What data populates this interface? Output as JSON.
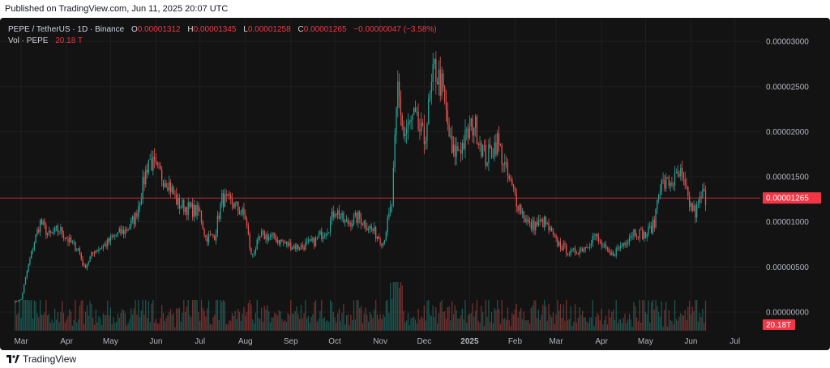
{
  "header": {
    "published": "Published on TradingView.com, Jun 11, 2025 20:07 UTC"
  },
  "legend": {
    "symbol": "PEPE / TetherUS · 1D · Binance",
    "o_label": "O",
    "o": "0.00001312",
    "h_label": "H",
    "h": "0.00001345",
    "l_label": "L",
    "l": "0.00001258",
    "c_label": "C",
    "c": "0.00001265",
    "change": "−0.00000047 (−3.58%)",
    "vol_label": "Vol · PEPE",
    "vol": "20.18 T"
  },
  "footer": {
    "brand": "TradingView"
  },
  "colors": {
    "up": "#26a69a",
    "down": "#ef5350",
    "background": "#131313",
    "price_line": "#f23645",
    "axis_text": "#b2b5be"
  },
  "chart_data": {
    "type": "candlestick",
    "title": "",
    "y_ticks": [
      "0.00003000",
      "0.00002500",
      "0.00002000",
      "0.00001500",
      "0.00001000",
      "0.00000500",
      "0.00000000"
    ],
    "ylim": [
      0,
      3.1e-05
    ],
    "x_ticks": [
      "Mar",
      "Apr",
      "May",
      "Jun",
      "Jul",
      "Aug",
      "Sep",
      "Oct",
      "Nov",
      "Dec",
      "2025",
      "Feb",
      "Mar",
      "Apr",
      "May",
      "Jun",
      "Jul"
    ],
    "last_price": 1.265e-05,
    "last_price_label": "0.00001265",
    "volume_label": "20.18T",
    "close_series": [
      {
        "date": "2024-02-25",
        "close": 1.1e-06
      },
      {
        "date": "2024-03-01",
        "close": 1.4e-06
      },
      {
        "date": "2024-03-05",
        "close": 4.5e-06
      },
      {
        "date": "2024-03-10",
        "close": 7.8e-06
      },
      {
        "date": "2024-03-14",
        "close": 1e-05
      },
      {
        "date": "2024-03-20",
        "close": 8.5e-06
      },
      {
        "date": "2024-03-27",
        "close": 9.2e-06
      },
      {
        "date": "2024-04-03",
        "close": 7.8e-06
      },
      {
        "date": "2024-04-09",
        "close": 7e-06
      },
      {
        "date": "2024-04-13",
        "close": 4.9e-06
      },
      {
        "date": "2024-04-20",
        "close": 6.8e-06
      },
      {
        "date": "2024-04-27",
        "close": 7.4e-06
      },
      {
        "date": "2024-05-04",
        "close": 8.5e-06
      },
      {
        "date": "2024-05-11",
        "close": 9e-06
      },
      {
        "date": "2024-05-18",
        "close": 1.05e-05
      },
      {
        "date": "2024-05-23",
        "close": 1.4e-05
      },
      {
        "date": "2024-05-27",
        "close": 1.7e-05
      },
      {
        "date": "2024-06-02",
        "close": 1.55e-05
      },
      {
        "date": "2024-06-09",
        "close": 1.45e-05
      },
      {
        "date": "2024-06-16",
        "close": 1.2e-05
      },
      {
        "date": "2024-06-23",
        "close": 1.15e-05
      },
      {
        "date": "2024-07-01",
        "close": 1.1e-05
      },
      {
        "date": "2024-07-05",
        "close": 8.2e-06
      },
      {
        "date": "2024-07-11",
        "close": 8.5e-06
      },
      {
        "date": "2024-07-16",
        "close": 1.25e-05
      },
      {
        "date": "2024-07-24",
        "close": 1.2e-05
      },
      {
        "date": "2024-08-01",
        "close": 1.05e-05
      },
      {
        "date": "2024-08-05",
        "close": 6.2e-06
      },
      {
        "date": "2024-08-12",
        "close": 8.5e-06
      },
      {
        "date": "2024-08-21",
        "close": 8.2e-06
      },
      {
        "date": "2024-08-29",
        "close": 7.5e-06
      },
      {
        "date": "2024-09-07",
        "close": 7.2e-06
      },
      {
        "date": "2024-09-17",
        "close": 7.8e-06
      },
      {
        "date": "2024-09-27",
        "close": 9.5e-06
      },
      {
        "date": "2024-10-01",
        "close": 1.15e-05
      },
      {
        "date": "2024-10-08",
        "close": 9.8e-06
      },
      {
        "date": "2024-10-17",
        "close": 1.05e-05
      },
      {
        "date": "2024-10-24",
        "close": 9.5e-06
      },
      {
        "date": "2024-11-03",
        "close": 7.8e-06
      },
      {
        "date": "2024-11-09",
        "close": 1.2e-05
      },
      {
        "date": "2024-11-13",
        "close": 2.5e-05
      },
      {
        "date": "2024-11-17",
        "close": 1.95e-05
      },
      {
        "date": "2024-11-24",
        "close": 2.15e-05
      },
      {
        "date": "2024-12-01",
        "close": 1.9e-05
      },
      {
        "date": "2024-12-08",
        "close": 2.7e-05
      },
      {
        "date": "2024-12-13",
        "close": 2.5e-05
      },
      {
        "date": "2024-12-20",
        "close": 1.75e-05
      },
      {
        "date": "2024-12-27",
        "close": 1.85e-05
      },
      {
        "date": "2025-01-04",
        "close": 2.1e-05
      },
      {
        "date": "2025-01-12",
        "close": 1.7e-05
      },
      {
        "date": "2025-01-20",
        "close": 1.9e-05
      },
      {
        "date": "2025-01-27",
        "close": 1.5e-05
      },
      {
        "date": "2025-02-03",
        "close": 1.2e-05
      },
      {
        "date": "2025-02-11",
        "close": 9.5e-06
      },
      {
        "date": "2025-02-21",
        "close": 1e-05
      },
      {
        "date": "2025-03-01",
        "close": 7.8e-06
      },
      {
        "date": "2025-03-11",
        "close": 6.5e-06
      },
      {
        "date": "2025-03-21",
        "close": 7.2e-06
      },
      {
        "date": "2025-03-27",
        "close": 8.5e-06
      },
      {
        "date": "2025-04-07",
        "close": 6.2e-06
      },
      {
        "date": "2025-04-14",
        "close": 7.3e-06
      },
      {
        "date": "2025-04-23",
        "close": 9e-06
      },
      {
        "date": "2025-05-01",
        "close": 8.5e-06
      },
      {
        "date": "2025-05-07",
        "close": 9.8e-06
      },
      {
        "date": "2025-05-10",
        "close": 1.4e-05
      },
      {
        "date": "2025-05-20",
        "close": 1.45e-05
      },
      {
        "date": "2025-05-25",
        "close": 1.52e-05
      },
      {
        "date": "2025-05-31",
        "close": 1.2e-05
      },
      {
        "date": "2025-06-04",
        "close": 1.1e-05
      },
      {
        "date": "2025-06-09",
        "close": 1.31e-05
      },
      {
        "date": "2025-06-11",
        "close": 1.265e-05
      }
    ]
  }
}
